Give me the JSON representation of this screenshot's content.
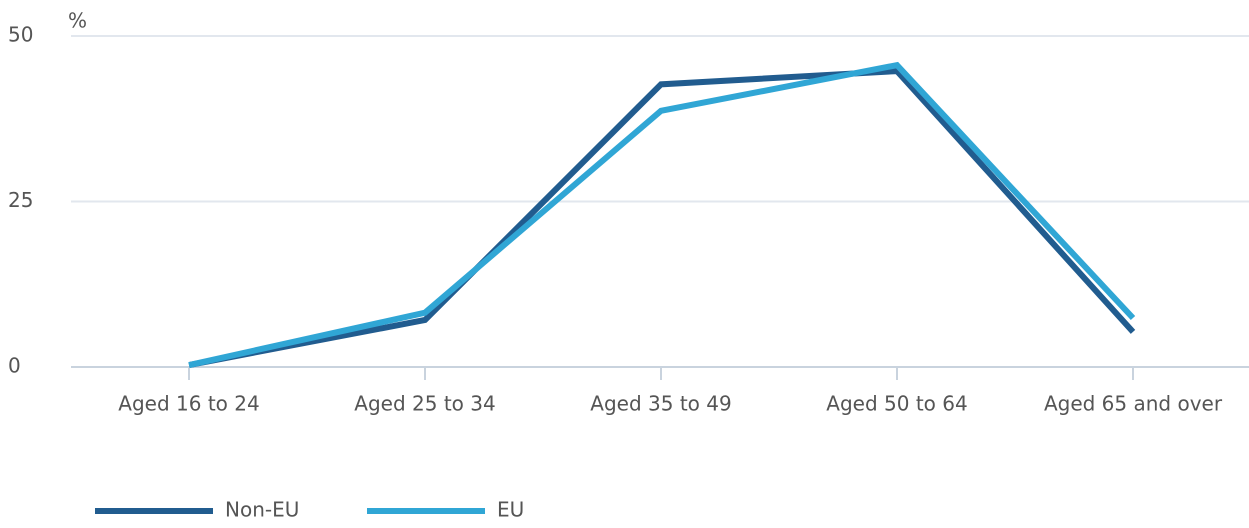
{
  "chart_data": {
    "type": "line",
    "y_label": "%",
    "categories": [
      "Aged 16 to 24",
      "Aged 25 to 34",
      "Aged 35 to 49",
      "Aged 50 to 64",
      "Aged 65 and over"
    ],
    "series": [
      {
        "name": "Non-EU",
        "color": "#215c8f",
        "values": [
          0.3,
          7.1,
          42.7,
          44.7,
          5.3
        ]
      },
      {
        "name": "EU",
        "color": "#30a6d5",
        "values": [
          0.3,
          8.2,
          38.7,
          45.6,
          7.4
        ]
      }
    ],
    "ylim": [
      0,
      50
    ],
    "yticks": [
      0,
      25,
      50
    ],
    "grid": true
  }
}
